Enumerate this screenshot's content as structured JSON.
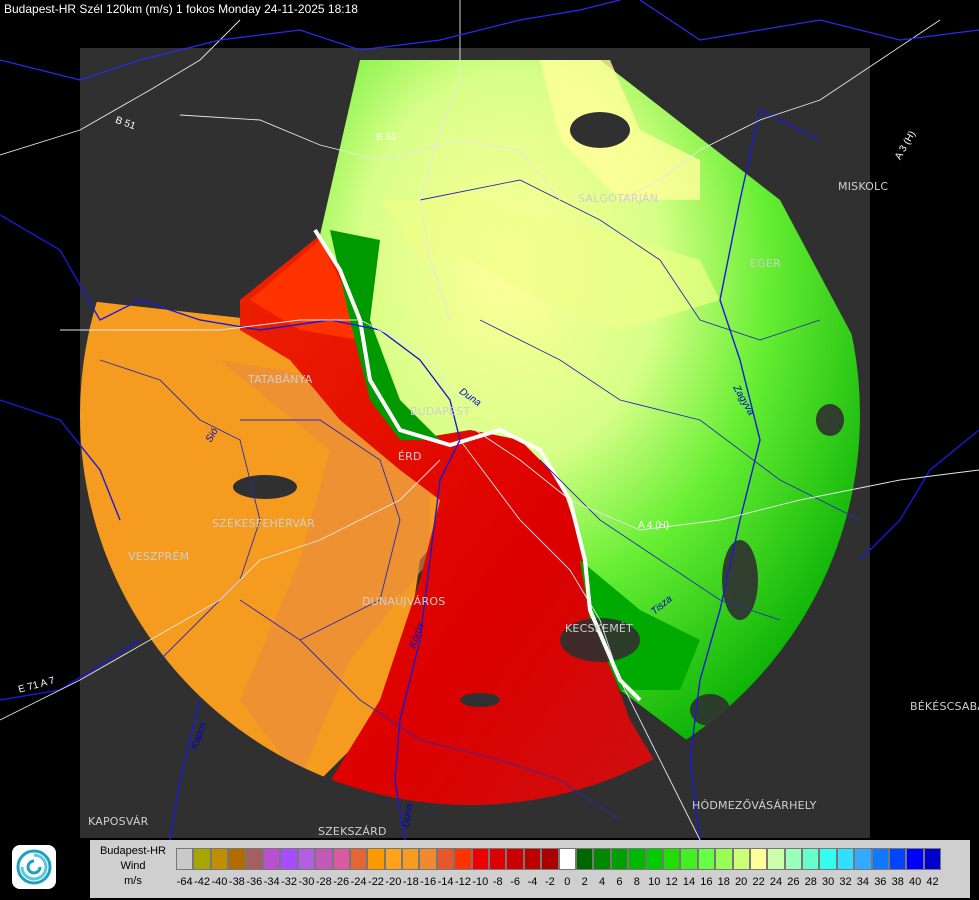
{
  "header": {
    "title": "Budapest-HR Szél 120km (m/s) 1 fokos Monday 24-11-2025 18:18"
  },
  "map": {
    "cities": [
      "SALGÓTARJÁN",
      "MISKOLC",
      "EGER",
      "TATABÁNYA",
      "BUDAPEST",
      "ÉRD",
      "SZÉKESFEHÉRVÁR",
      "VESZPRÉM",
      "DUNAÚJVÁROS",
      "KECSKEMÉT",
      "BÉKÉSCSABA",
      "HÓDMEZŐVÁSÁRHELY",
      "KAPOSVÁR",
      "SZEKSZÁRD"
    ],
    "roads": [
      "B 51",
      "B 51",
      "A 3 (H)",
      "A 4 (H)",
      "E 71 A 7"
    ],
    "rivers": [
      "Duna",
      "Zagyva",
      "Tisza",
      "Sió",
      "Duna",
      "Kapos",
      "Körös"
    ]
  },
  "legend": {
    "title_lines": [
      "Budapest-HR",
      "Wind",
      "m/s"
    ],
    "ticks": [
      "-64",
      "-42",
      "-40",
      "-38",
      "-36",
      "-34",
      "-32",
      "-30",
      "-28",
      "-26",
      "-24",
      "-22",
      "-20",
      "-18",
      "-16",
      "-14",
      "-12",
      "-10",
      "-8",
      "-6",
      "-4",
      "-2",
      "0",
      "2",
      "4",
      "6",
      "8",
      "10",
      "12",
      "14",
      "16",
      "18",
      "20",
      "22",
      "24",
      "26",
      "28",
      "30",
      "32",
      "34",
      "36",
      "38",
      "40",
      "42"
    ],
    "colors": [
      "#c9c9c9",
      "#a6a600",
      "#bf8f00",
      "#b36b00",
      "#a65f5f",
      "#bb4fd1",
      "#a64dff",
      "#b060e0",
      "#c45ab8",
      "#d95aa0",
      "#e66633",
      "#ff9900",
      "#ffa31a",
      "#f59b1f",
      "#ef8a30",
      "#e8572a",
      "#ff3300",
      "#ee0000",
      "#dd0000",
      "#cc0000",
      "#bb0000",
      "#aa0000",
      "#ffffff",
      "#006600",
      "#008800",
      "#00a000",
      "#00b800",
      "#00cc00",
      "#22dd00",
      "#44ee22",
      "#66ff44",
      "#99ff55",
      "#ccff77",
      "#ffff99",
      "#ccffaa",
      "#99ffbb",
      "#66ffcc",
      "#33ffee",
      "#33ddff",
      "#33aaff",
      "#1177ff",
      "#0044ff",
      "#0000ff",
      "#0000cc"
    ],
    "logo_icon": "met-service-swirl-icon"
  }
}
